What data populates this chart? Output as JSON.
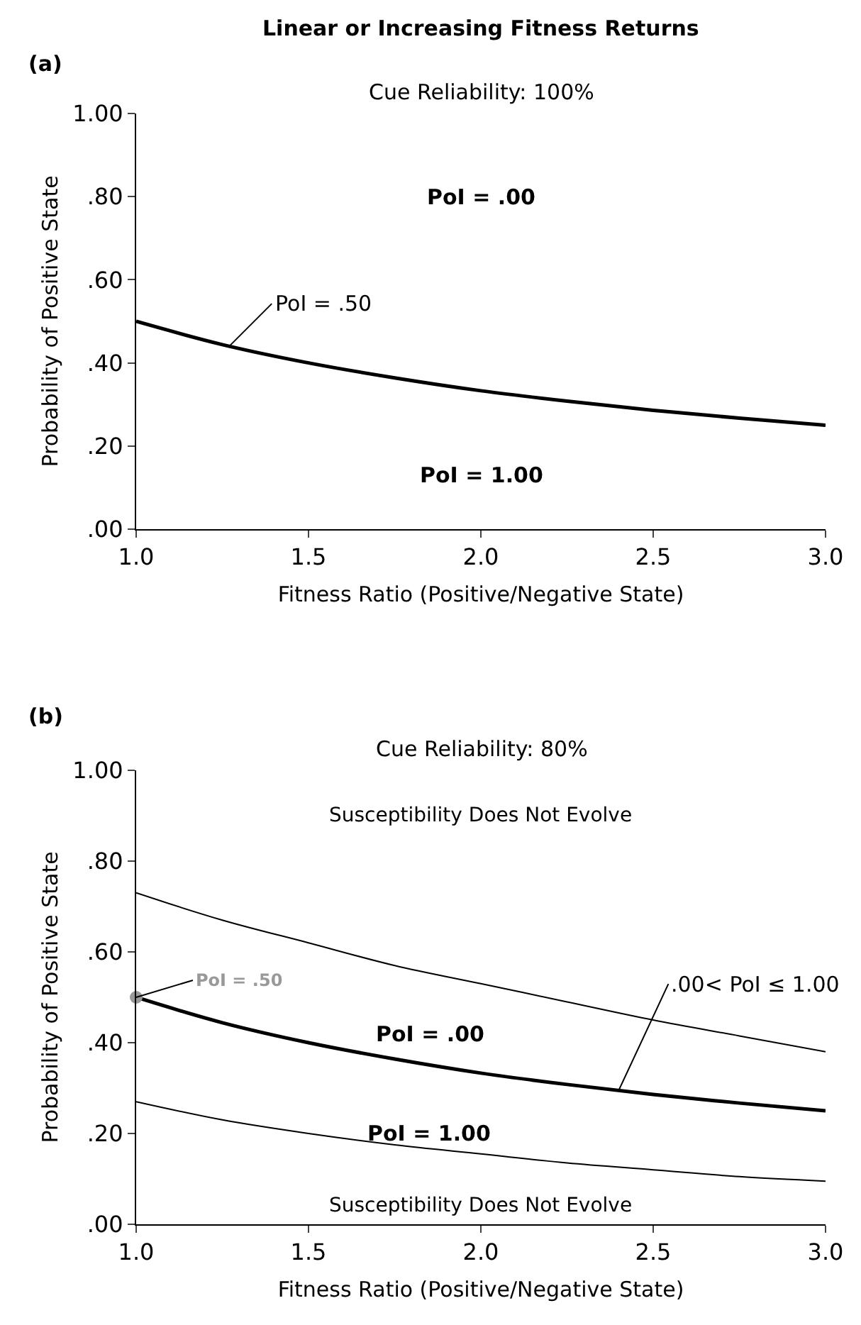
{
  "chart_data": [
    {
      "type": "line",
      "title": "Cue Reliability: 100%",
      "xlabel": "Fitness Ratio (Positive/Negative State)",
      "ylabel": "Probability of Positive State",
      "x": [
        1.0,
        1.25,
        1.5,
        1.75,
        2.0,
        2.25,
        2.5,
        2.75,
        3.0
      ],
      "series": [
        {
          "color": "#000000",
          "values": [
            0.5,
            0.444,
            0.4,
            0.364,
            0.333,
            0.308,
            0.286,
            0.267,
            0.25
          ]
        }
      ],
      "xlim": [
        1.0,
        3.0
      ],
      "xticks": [
        {
          "value": 1,
          "label": "1.0"
        },
        {
          "value": 1.5,
          "label": "1.5"
        },
        {
          "value": 2,
          "label": "2.0"
        },
        {
          "value": 2.5,
          "label": "2.5"
        },
        {
          "value": 3,
          "label": "3.0"
        }
      ],
      "ylim": [
        0,
        1
      ],
      "yticks": [
        {
          "value": 0,
          "label": ".00"
        },
        {
          "value": 0.2,
          "label": ".20"
        },
        {
          "value": 0.4,
          "label": ".40"
        },
        {
          "value": 0.6,
          "label": ".60"
        },
        {
          "value": 0.8,
          "label": ".80"
        },
        {
          "value": 1,
          "label": "1.00"
        }
      ],
      "marker": "none",
      "line_style": "solid",
      "annotations": [
        "Linear or Increasing Fitness Returns",
        "(a)",
        "PoI = .00",
        "PoI = 1.00",
        {
          "text": "PoI = .50",
          "x": 1.27,
          "y": 0.44
        }
      ]
    },
    {
      "type": "line",
      "title": "Cue Reliability: 80%",
      "xlabel": "Fitness Ratio (Positive/Negative State)",
      "ylabel": "Probability of Positive State",
      "x": [
        1.0,
        1.25,
        1.5,
        1.75,
        2.0,
        2.25,
        2.5,
        2.75,
        3.0
      ],
      "series": [
        {
          "color": "#000000",
          "values": [
            0.5,
            0.444,
            0.4,
            0.364,
            0.333,
            0.308,
            0.286,
            0.267,
            0.25
          ]
        },
        {
          "color": "#000000",
          "values": [
            0.73,
            0.67,
            0.62,
            0.57,
            0.53,
            0.49,
            0.45,
            0.415,
            0.38
          ]
        },
        {
          "color": "#000000",
          "values": [
            0.27,
            0.23,
            0.2,
            0.175,
            0.155,
            0.135,
            0.12,
            0.105,
            0.095
          ]
        },
        {
          "type": "scatter",
          "marker": "circle",
          "color": "#999999",
          "x": [
            1.0
          ],
          "values": [
            0.5
          ]
        }
      ],
      "xlim": [
        1.0,
        3.0
      ],
      "xticks": [
        {
          "value": 1,
          "label": "1.0"
        },
        {
          "value": 1.5,
          "label": "1.5"
        },
        {
          "value": 2,
          "label": "2.0"
        },
        {
          "value": 2.5,
          "label": "2.5"
        },
        {
          "value": 3,
          "label": "3.0"
        }
      ],
      "ylim": [
        0,
        1
      ],
      "yticks": [
        {
          "value": 0,
          "label": ".00"
        },
        {
          "value": 0.2,
          "label": ".20"
        },
        {
          "value": 0.4,
          "label": ".40"
        },
        {
          "value": 0.6,
          "label": ".60"
        },
        {
          "value": 0.8,
          "label": ".80"
        },
        {
          "value": 1,
          "label": "1.00"
        }
      ],
      "marker": "none",
      "line_style": "solid",
      "annotations": [
        "(b)",
        "Susceptibility Does Not Evolve",
        "Susceptibility Does Not Evolve",
        "PoI = .00",
        "PoI = 1.00",
        {
          "text": "PoI = .50",
          "x": 1.0,
          "y": 0.5
        },
        {
          "text": ".00< PoI ≤ 1.00",
          "x": 2.4,
          "y": 0.295
        }
      ]
    }
  ]
}
